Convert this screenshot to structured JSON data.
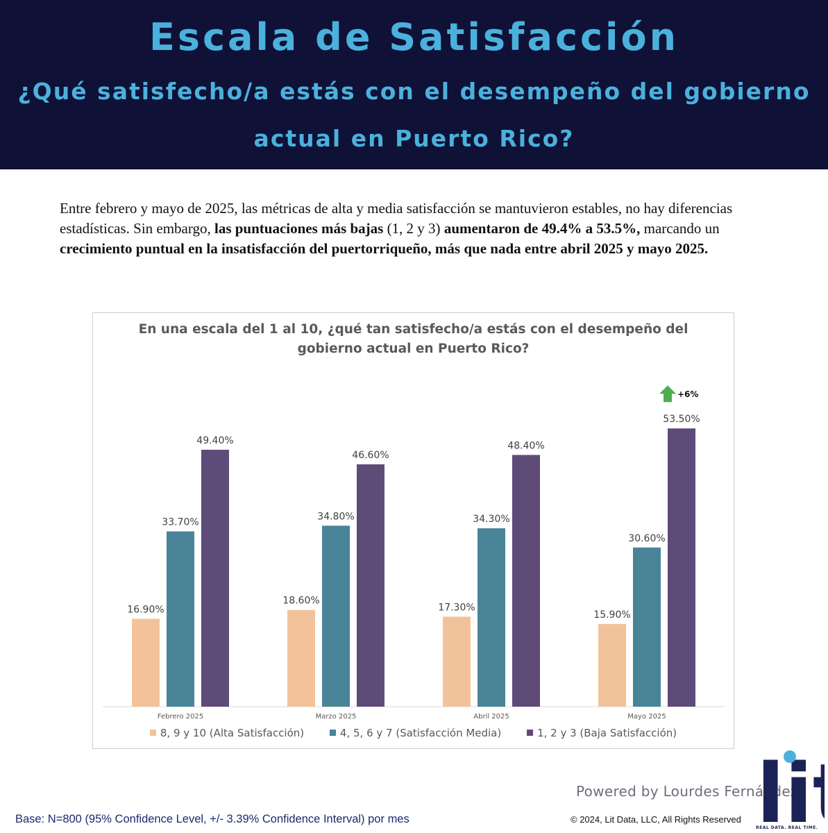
{
  "header": {
    "title": "Escala de Satisfacción",
    "subtitle": "¿Qué satisfecho/a estás con el desempeño del gobierno actual en Puerto Rico?"
  },
  "intro": {
    "part1": "Entre febrero y mayo de 2025, las métricas de alta y media satisfacción se mantuvieron estables, no hay diferencias estadísticas. Sin embargo, ",
    "bold1": "las puntuaciones más bajas",
    "part2": " (1, 2 y 3) ",
    "bold2": "aumentaron de 49.4% a 53.5%,",
    "part3": " marcando un ",
    "bold3": "crecimiento puntual en la insatisfacción del puertorriqueño, más que nada entre abril 2025 y mayo 2025."
  },
  "chart_data": {
    "type": "bar",
    "title": "En una escala del 1 al 10, ¿qué tan satisfecho/a estás con el desempeño del gobierno actual en Puerto Rico?",
    "categories": [
      "Febrero 2025",
      "Marzo 2025",
      "Abril 2025",
      "Mayo 2025"
    ],
    "series": [
      {
        "name": "8, 9 y 10 (Alta Satisfacción)",
        "values": [
          16.9,
          18.6,
          17.3,
          15.9
        ],
        "labels": [
          "16.90%",
          "18.60%",
          "17.30%",
          "15.90%"
        ],
        "color": "#f2c39a"
      },
      {
        "name": "4, 5, 6 y 7 (Satisfacción Media)",
        "values": [
          33.7,
          34.8,
          34.3,
          30.6
        ],
        "labels": [
          "33.70%",
          "34.80%",
          "34.30%",
          "30.60%"
        ],
        "color": "#4a8498"
      },
      {
        "name": "1, 2 y 3 (Baja Satisfacción)",
        "values": [
          49.4,
          46.6,
          48.4,
          53.5
        ],
        "labels": [
          "49.40%",
          "46.60%",
          "48.40%",
          "53.50%"
        ],
        "color": "#5f4b78"
      }
    ],
    "ylim": [
      0,
      61
    ],
    "grid": false,
    "legend": "bottom",
    "annotation": {
      "text": "+6%",
      "category": "Mayo 2025",
      "series": "1, 2 y 3 (Baja Satisfacción)",
      "arrow_color": "#4cae50"
    }
  },
  "footer": {
    "powered_by": "Powered by Lourdes Fernández",
    "logo_text": "lit",
    "logo_tagline": "REAL DATA. REAL TIME.",
    "base_note": "Base: N=800 (95% Confidence Level, +/- 3.39% Confidence Interval) por mes",
    "copyright": "©  2024, Lit Data, LLC, All Rights Reserved"
  }
}
